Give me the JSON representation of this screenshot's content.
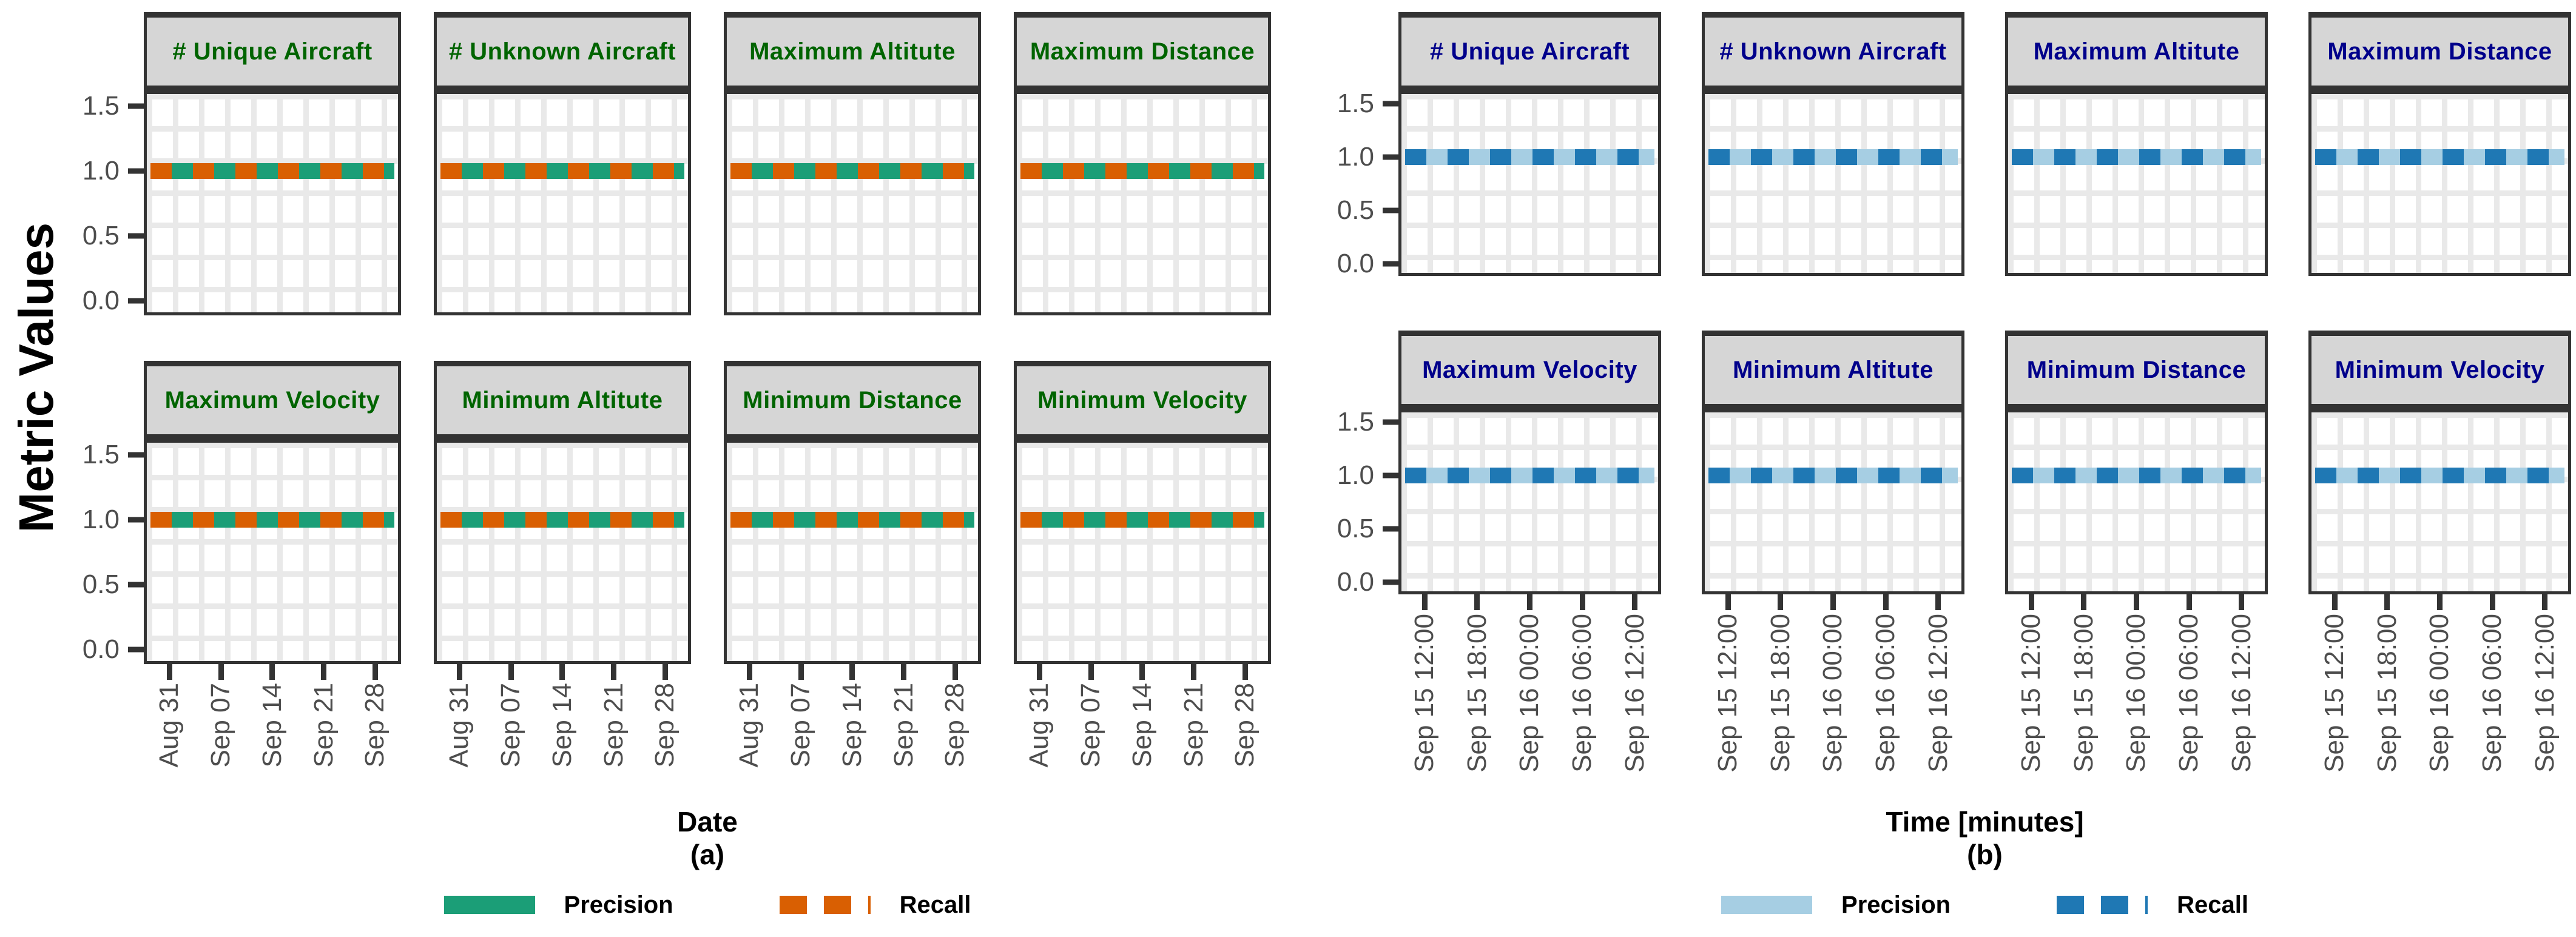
{
  "chart_data": [
    {
      "type": "line",
      "caption": "(a)",
      "xlabel": "Date",
      "ylabel": "Metric Values",
      "facet_title_color": "#006400",
      "facet_titles": [
        "# Unique Aircraft",
        "# Unknown Aircraft",
        "Maximum Altitute",
        "Maximum Distance",
        "Maximum Velocity",
        "Minimum Altitute",
        "Minimum Distance",
        "Minimum Velocity"
      ],
      "x_tick_labels": [
        "Aug 31",
        "Sep 07",
        "Sep 14",
        "Sep 21",
        "Sep 28"
      ],
      "y_tick_labels": [
        "1.5",
        "1.0",
        "0.5",
        "0.0"
      ],
      "ylim": [
        0.0,
        1.5
      ],
      "grid": true,
      "legend_position": "bottom",
      "series": [
        {
          "name": "Precision",
          "style": "solid",
          "color": "#1B9E77",
          "values": [
            1.0,
            1.0,
            1.0,
            1.0,
            1.0
          ]
        },
        {
          "name": "Recall",
          "style": "dashed",
          "color": "#D95F02",
          "values": [
            1.0,
            1.0,
            1.0,
            1.0,
            1.0
          ]
        }
      ]
    },
    {
      "type": "line",
      "caption": "(b)",
      "xlabel": "Time [minutes]",
      "ylabel": "",
      "facet_title_color": "#00008B",
      "facet_titles": [
        "# Unique Aircraft",
        "# Unknown Aircraft",
        "Maximum Altitute",
        "Maximum Distance",
        "Maximum Velocity",
        "Minimum Altitute",
        "Minimum Distance",
        "Minimum Velocity"
      ],
      "x_tick_labels": [
        "Sep 15 12:00",
        "Sep 15 18:00",
        "Sep 16 00:00",
        "Sep 16 06:00",
        "Sep 16 12:00"
      ],
      "y_tick_labels": [
        "1.5",
        "1.0",
        "0.5",
        "0.0"
      ],
      "ylim": [
        0.0,
        1.5
      ],
      "grid": true,
      "legend_position": "bottom",
      "series": [
        {
          "name": "Precision",
          "style": "solid",
          "color": "#A6CEE3",
          "values": [
            1.0,
            1.0,
            1.0,
            1.0,
            1.0
          ]
        },
        {
          "name": "Recall",
          "style": "dashed",
          "color": "#1F78B4",
          "values": [
            1.0,
            1.0,
            1.0,
            1.0,
            1.0
          ]
        }
      ]
    }
  ],
  "styles": {
    "strip_background": "#D6D6D6",
    "frame_color": "#333333",
    "tick_text_color": "#4D4D4D",
    "grid_color": "#E9E9E9"
  }
}
